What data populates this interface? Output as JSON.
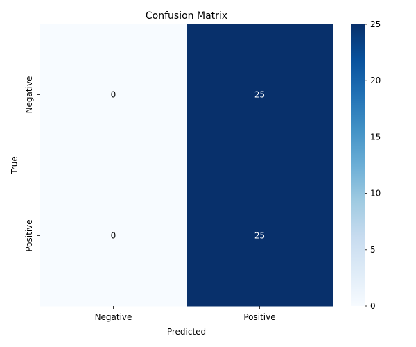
{
  "chart_data": {
    "type": "heatmap",
    "title": "Confusion Matrix",
    "xlabel": "Predicted",
    "ylabel": "True",
    "x_categories": [
      "Negative",
      "Positive"
    ],
    "y_categories": [
      "Negative",
      "Positive"
    ],
    "values": [
      [
        0,
        25
      ],
      [
        0,
        25
      ]
    ],
    "colormap": "Blues",
    "colorbar": {
      "range": [
        0,
        25
      ],
      "ticks": [
        "0",
        "5",
        "10",
        "15",
        "20",
        "25"
      ]
    },
    "cell_text_colors": {
      "light": "#000000",
      "dark": "#ffffff"
    },
    "cell_labels": [
      [
        "0",
        "25"
      ],
      [
        "0",
        "25"
      ]
    ]
  }
}
